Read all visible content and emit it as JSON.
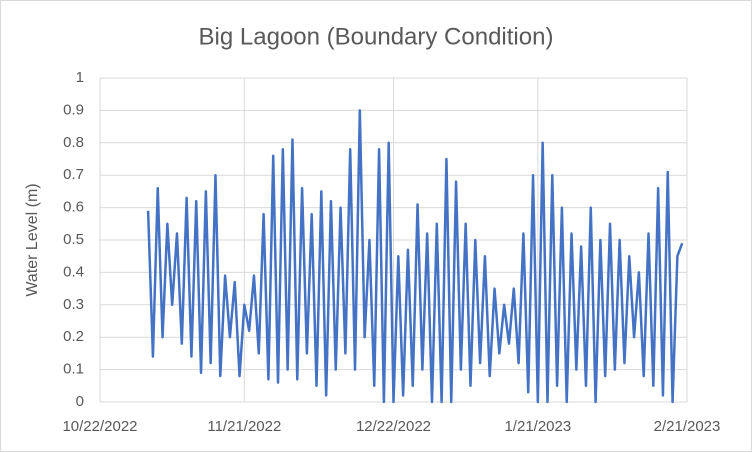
{
  "chart_data": {
    "type": "line",
    "title": "Big Lagoon (Boundary Condition)",
    "y_label": "Water Level (m)",
    "x": [
      "11/1/2022",
      "11/2/2022",
      "11/3/2022",
      "11/4/2022",
      "11/5/2022",
      "11/6/2022",
      "11/7/2022",
      "11/8/2022",
      "11/9/2022",
      "11/10/2022",
      "11/11/2022",
      "11/12/2022",
      "11/13/2022",
      "11/14/2022",
      "11/15/2022",
      "11/16/2022",
      "11/17/2022",
      "11/18/2022",
      "11/19/2022",
      "11/20/2022",
      "11/21/2022",
      "11/22/2022",
      "11/23/2022",
      "11/24/2022",
      "11/25/2022",
      "11/26/2022",
      "11/27/2022",
      "11/28/2022",
      "11/29/2022",
      "11/30/2022",
      "12/1/2022",
      "12/2/2022",
      "12/3/2022",
      "12/4/2022",
      "12/5/2022",
      "12/6/2022",
      "12/7/2022",
      "12/8/2022",
      "12/9/2022",
      "12/10/2022",
      "12/11/2022",
      "12/12/2022",
      "12/13/2022",
      "12/14/2022",
      "12/15/2022",
      "12/16/2022",
      "12/17/2022",
      "12/18/2022",
      "12/19/2022",
      "12/20/2022",
      "12/21/2022",
      "12/22/2022",
      "12/23/2022",
      "12/24/2022",
      "12/25/2022",
      "12/26/2022",
      "12/27/2022",
      "12/28/2022",
      "12/29/2022",
      "12/30/2022",
      "12/31/2022",
      "1/1/2023",
      "1/2/2023",
      "1/3/2023",
      "1/4/2023",
      "1/5/2023",
      "1/6/2023",
      "1/7/2023",
      "1/8/2023",
      "1/9/2023",
      "1/10/2023",
      "1/11/2023",
      "1/12/2023",
      "1/13/2023",
      "1/14/2023",
      "1/15/2023",
      "1/16/2023",
      "1/17/2023",
      "1/18/2023",
      "1/19/2023",
      "1/20/2023",
      "1/21/2023",
      "1/22/2023",
      "1/23/2023",
      "1/24/2023",
      "1/25/2023",
      "1/26/2023",
      "1/27/2023",
      "1/28/2023",
      "1/29/2023",
      "1/30/2023",
      "1/31/2023",
      "2/1/2023",
      "2/2/2023",
      "2/3/2023",
      "2/4/2023",
      "2/5/2023",
      "2/6/2023",
      "2/7/2023",
      "2/8/2023",
      "2/9/2023",
      "2/10/2023",
      "2/11/2023",
      "2/12/2023",
      "2/13/2023",
      "2/14/2023",
      "2/15/2023",
      "2/16/2023",
      "2/17/2023",
      "2/18/2023",
      "2/19/2023",
      "2/20/2023"
    ],
    "series": [
      {
        "name": "Water Level",
        "color": "#4472c4",
        "values": [
          0.59,
          0.14,
          0.66,
          0.2,
          0.55,
          0.3,
          0.52,
          0.18,
          0.63,
          0.14,
          0.62,
          0.09,
          0.65,
          0.12,
          0.7,
          0.08,
          0.39,
          0.2,
          0.37,
          0.08,
          0.3,
          0.22,
          0.39,
          0.15,
          0.58,
          0.07,
          0.76,
          0.06,
          0.78,
          0.1,
          0.81,
          0.07,
          0.66,
          0.15,
          0.58,
          0.05,
          0.65,
          0.02,
          0.62,
          0.1,
          0.6,
          0.15,
          0.78,
          0.1,
          0.9,
          0.2,
          0.5,
          0.05,
          0.78,
          0.0,
          0.8,
          0.0,
          0.45,
          0.02,
          0.47,
          0.05,
          0.61,
          0.1,
          0.52,
          0.0,
          0.55,
          0.0,
          0.75,
          0.0,
          0.68,
          0.1,
          0.55,
          0.05,
          0.5,
          0.12,
          0.45,
          0.08,
          0.35,
          0.15,
          0.3,
          0.18,
          0.35,
          0.12,
          0.52,
          0.03,
          0.7,
          0.0,
          0.8,
          0.0,
          0.7,
          0.05,
          0.6,
          0.0,
          0.52,
          0.1,
          0.48,
          0.05,
          0.6,
          0.0,
          0.5,
          0.08,
          0.55,
          0.1,
          0.5,
          0.12,
          0.45,
          0.2,
          0.4,
          0.08,
          0.52,
          0.05,
          0.66,
          0.02,
          0.71,
          0.0,
          0.45,
          0.49
        ]
      }
    ],
    "xlim": [
      "10/22/2022",
      "2/21/2023"
    ],
    "xticks": [
      "10/22/2022",
      "11/21/2022",
      "12/22/2022",
      "1/21/2023",
      "2/21/2023"
    ],
    "ylim": [
      0,
      1
    ],
    "yticks": [
      0,
      0.1,
      0.2,
      0.3,
      0.4,
      0.5,
      0.6,
      0.7,
      0.8,
      0.9,
      1
    ],
    "grid": true
  }
}
